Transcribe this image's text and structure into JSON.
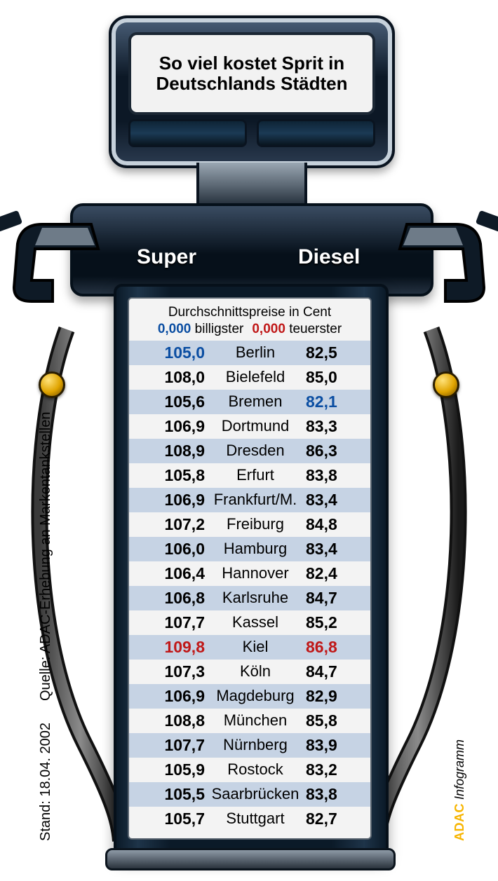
{
  "title": "So viel kostet Sprit in Deutschlands Städten",
  "fuel_labels": {
    "super": "Super",
    "diesel": "Diesel"
  },
  "legend": {
    "line1": "Durchschnittspreise in Cent",
    "cheapest_marker": "0,000",
    "cheapest_label": "billigster",
    "dearest_marker": "0,000",
    "dearest_label": "teuerster"
  },
  "colors": {
    "highlight_cheapest": "#0b4ea2",
    "highlight_dearest": "#c01818",
    "row_band": "#c6d3e4",
    "panel_bg": "#f3f3f3",
    "frame_dark": "#0b1a28",
    "text": "#000000"
  },
  "table": {
    "columns": [
      "super_cent",
      "city",
      "diesel_cent"
    ],
    "rows": [
      {
        "city": "Berlin",
        "super": "105,0",
        "diesel": "82,5",
        "super_hl": "blue"
      },
      {
        "city": "Bielefeld",
        "super": "108,0",
        "diesel": "85,0"
      },
      {
        "city": "Bremen",
        "super": "105,6",
        "diesel": "82,1",
        "diesel_hl": "blue"
      },
      {
        "city": "Dortmund",
        "super": "106,9",
        "diesel": "83,3"
      },
      {
        "city": "Dresden",
        "super": "108,9",
        "diesel": "86,3"
      },
      {
        "city": "Erfurt",
        "super": "105,8",
        "diesel": "83,8"
      },
      {
        "city": "Frankfurt/M.",
        "super": "106,9",
        "diesel": "83,4"
      },
      {
        "city": "Freiburg",
        "super": "107,2",
        "diesel": "84,8"
      },
      {
        "city": "Hamburg",
        "super": "106,0",
        "diesel": "83,4"
      },
      {
        "city": "Hannover",
        "super": "106,4",
        "diesel": "82,4"
      },
      {
        "city": "Karlsruhe",
        "super": "106,8",
        "diesel": "84,7"
      },
      {
        "city": "Kassel",
        "super": "107,7",
        "diesel": "85,2"
      },
      {
        "city": "Kiel",
        "super": "109,8",
        "diesel": "86,8",
        "super_hl": "red",
        "diesel_hl": "red"
      },
      {
        "city": "Köln",
        "super": "107,3",
        "diesel": "84,7"
      },
      {
        "city": "Magdeburg",
        "super": "106,9",
        "diesel": "82,9"
      },
      {
        "city": "München",
        "super": "108,8",
        "diesel": "85,8"
      },
      {
        "city": "Nürnberg",
        "super": "107,7",
        "diesel": "83,9"
      },
      {
        "city": "Rostock",
        "super": "105,9",
        "diesel": "83,2"
      },
      {
        "city": "Saarbrücken",
        "super": "105,5",
        "diesel": "83,8"
      },
      {
        "city": "Stuttgart",
        "super": "105,7",
        "diesel": "82,7"
      }
    ]
  },
  "footnotes": {
    "stand": "Stand: 18.04. 2002",
    "quelle": "Quelle: ADAC-Erhebung an Markentankstellen",
    "credit_brand": "ADAC",
    "credit_word": "Infogramm"
  }
}
